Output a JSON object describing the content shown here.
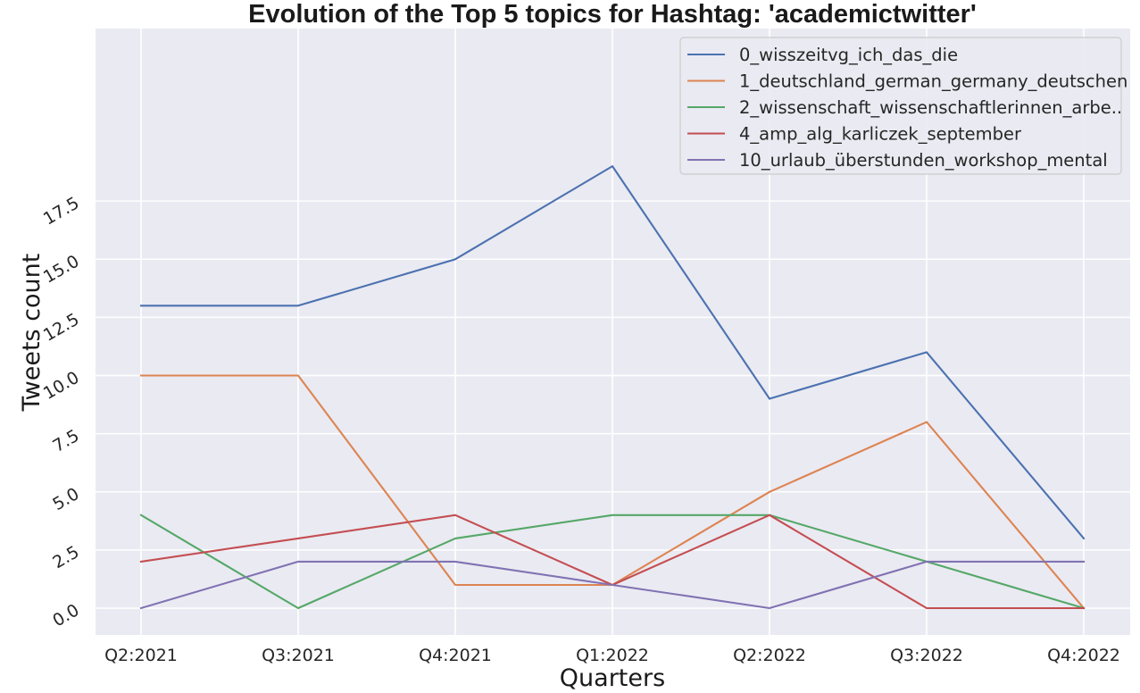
{
  "chart_data": {
    "type": "line",
    "title": "Evolution of the Top 5 topics for Hashtag: 'academictwitter'",
    "xlabel": "Quarters",
    "ylabel": "Tweets count",
    "categories": [
      "Q2:2021",
      "Q3:2021",
      "Q4:2021",
      "Q1:2022",
      "Q2:2022",
      "Q3:2022",
      "Q4:2022"
    ],
    "yticks": [
      "0.0",
      "2.5",
      "5.0",
      "7.5",
      "10.0",
      "12.5",
      "15.0",
      "17.5"
    ],
    "ylim": [
      -0.9,
      19.9
    ],
    "grid": true,
    "legend_position": "top-right",
    "series": [
      {
        "name": "0_wisszeitvg_ich_das_die",
        "color": "#4c72b0",
        "values": [
          13,
          13,
          15,
          19,
          9,
          11,
          3
        ]
      },
      {
        "name": "1_deutschland_german_germany_deutschen",
        "color": "#dd8452",
        "values": [
          10,
          10,
          1,
          1,
          5,
          8,
          0
        ]
      },
      {
        "name": "2_wissenschaft_wissenschaftlerinnen_arbe..",
        "color": "#55a868",
        "values": [
          4,
          0,
          3,
          4,
          4,
          2,
          0
        ]
      },
      {
        "name": "4_amp_alg_karliczek_september",
        "color": "#c44e52",
        "values": [
          2,
          3,
          4,
          1,
          4,
          0,
          0
        ]
      },
      {
        "name": "10_urlaub_überstunden_workshop_mental",
        "color": "#8172b3",
        "values": [
          0,
          2,
          2,
          1,
          0,
          2,
          2
        ]
      }
    ],
    "colors": {
      "plot_background": "#eaeaf2",
      "grid": "#ffffff",
      "legend_background": "#eaeaf2",
      "legend_border": "#cccccc"
    }
  }
}
